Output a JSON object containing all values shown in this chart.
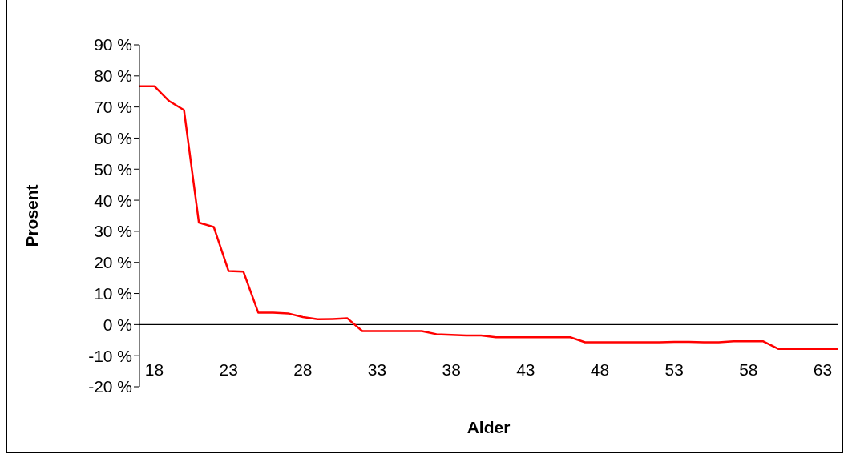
{
  "chart_data": {
    "type": "line",
    "xlabel": "Alder",
    "ylabel": "Prosent",
    "categories": [
      null,
      "18",
      null,
      null,
      null,
      null,
      "23",
      null,
      null,
      null,
      null,
      "28",
      null,
      null,
      null,
      null,
      "33",
      null,
      null,
      null,
      null,
      "38",
      null,
      null,
      null,
      null,
      "43",
      null,
      null,
      null,
      null,
      "48",
      null,
      null,
      null,
      null,
      "53",
      null,
      null,
      null,
      null,
      "58",
      null,
      null,
      null,
      null,
      "63",
      null
    ],
    "series": [
      {
        "color": "#ff0000",
        "values": [
          76.7,
          76.7,
          71.9,
          69.0,
          32.8,
          31.4,
          17.2,
          17.0,
          3.8,
          3.8,
          3.6,
          2.4,
          1.7,
          1.8,
          2.0,
          -2.1,
          -2.1,
          -2.1,
          -2.1,
          -2.1,
          -3.1,
          -3.3,
          -3.5,
          -3.5,
          -4.1,
          -4.1,
          -4.1,
          -4.1,
          -4.1,
          -4.1,
          -5.7,
          -5.7,
          -5.7,
          -5.7,
          -5.7,
          -5.7,
          -5.6,
          -5.6,
          -5.7,
          -5.7,
          -5.4,
          -5.4,
          -5.4,
          -7.8,
          -7.8,
          -7.8,
          -7.8,
          -7.8
        ]
      }
    ],
    "ylim": [
      -20,
      90
    ],
    "yticks": [
      {
        "value": -20,
        "label": "-20 %"
      },
      {
        "value": -10,
        "label": "-10 %"
      },
      {
        "value": 0,
        "label": "0 %"
      },
      {
        "value": 10,
        "label": "10 %"
      },
      {
        "value": 20,
        "label": "20 %"
      },
      {
        "value": 30,
        "label": "30 %"
      },
      {
        "value": 40,
        "label": "40 %"
      },
      {
        "value": 50,
        "label": "50 %"
      },
      {
        "value": 60,
        "label": "60 %"
      },
      {
        "value": 70,
        "label": "70 %"
      },
      {
        "value": 80,
        "label": "80 %"
      },
      {
        "value": 90,
        "label": "90 %"
      }
    ],
    "grid": false,
    "legend": false,
    "marker": "none",
    "line_style": "solid"
  }
}
